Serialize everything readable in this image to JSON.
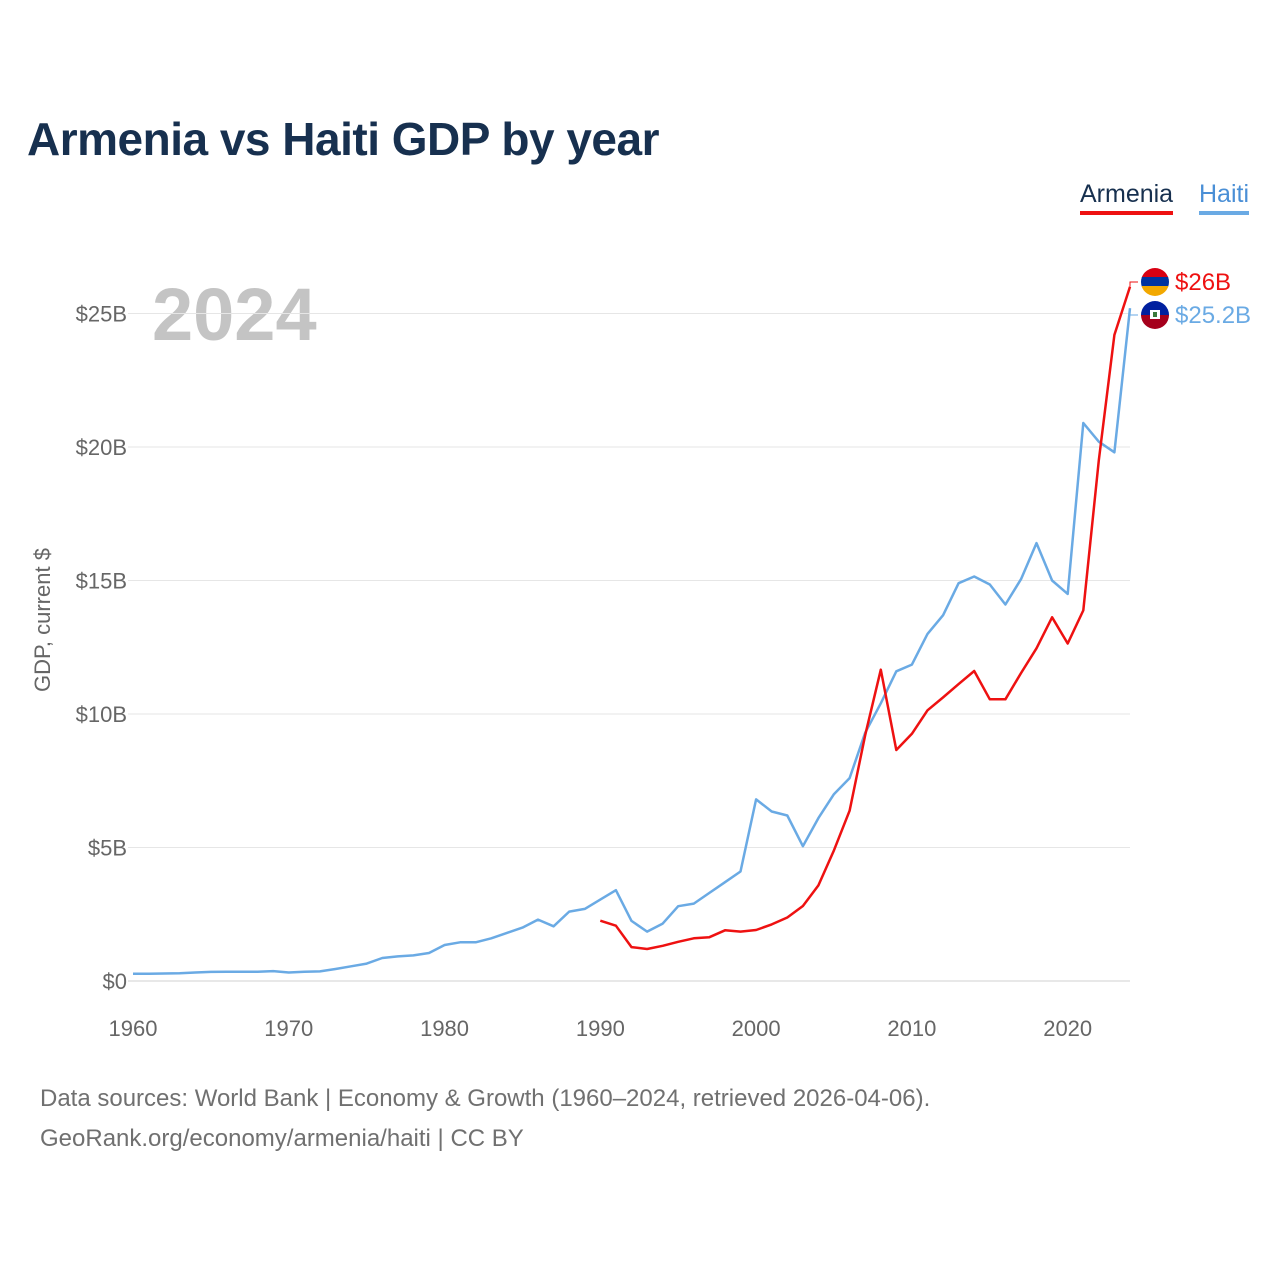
{
  "chart_data": {
    "type": "line",
    "title": "Armenia vs Haiti GDP by year",
    "watermark_year": "2024",
    "xlabel": "",
    "ylabel": "GDP, current $",
    "xlim": [
      1960,
      2024
    ],
    "ylim": [
      0,
      27
    ],
    "x_ticks": [
      1960,
      1970,
      1980,
      1990,
      2000,
      2010,
      2020
    ],
    "y_ticks": [
      0,
      5,
      10,
      15,
      20,
      25
    ],
    "y_tick_labels": [
      "$0",
      "$5B",
      "$10B",
      "$15B",
      "$20B",
      "$25B"
    ],
    "grid": true,
    "legend": "top-right",
    "series": [
      {
        "name": "Armenia",
        "color": "#ee1111",
        "flag": "armenia-flag",
        "end_label": "$26B",
        "x": [
          1990,
          1991,
          1992,
          1993,
          1994,
          1995,
          1996,
          1997,
          1998,
          1999,
          2000,
          2001,
          2002,
          2003,
          2004,
          2005,
          2006,
          2007,
          2008,
          2009,
          2010,
          2011,
          2012,
          2013,
          2014,
          2015,
          2016,
          2017,
          2018,
          2019,
          2020,
          2021,
          2022,
          2023,
          2024
        ],
        "values": [
          2.26,
          2.07,
          1.27,
          1.2,
          1.32,
          1.47,
          1.6,
          1.64,
          1.9,
          1.85,
          1.91,
          2.12,
          2.38,
          2.81,
          3.58,
          4.9,
          6.38,
          9.21,
          11.66,
          8.65,
          9.26,
          10.14,
          10.62,
          11.12,
          11.61,
          10.55,
          10.55,
          11.53,
          12.46,
          13.62,
          12.64,
          13.88,
          19.5,
          24.2,
          26.0
        ]
      },
      {
        "name": "Haiti",
        "color": "#6aaae4",
        "flag": "haiti-flag",
        "end_label": "$25.2B",
        "x": [
          1960,
          1961,
          1962,
          1963,
          1964,
          1965,
          1966,
          1967,
          1968,
          1969,
          1970,
          1971,
          1972,
          1973,
          1974,
          1975,
          1976,
          1977,
          1978,
          1979,
          1980,
          1981,
          1982,
          1983,
          1984,
          1985,
          1986,
          1987,
          1988,
          1989,
          1990,
          1991,
          1992,
          1993,
          1994,
          1995,
          1996,
          1997,
          1998,
          1999,
          2000,
          2001,
          2002,
          2003,
          2004,
          2005,
          2006,
          2007,
          2008,
          2009,
          2010,
          2011,
          2012,
          2013,
          2014,
          2015,
          2016,
          2017,
          2018,
          2019,
          2020,
          2021,
          2022,
          2023,
          2024
        ],
        "values": [
          0.27,
          0.27,
          0.28,
          0.29,
          0.32,
          0.34,
          0.35,
          0.35,
          0.35,
          0.37,
          0.32,
          0.35,
          0.36,
          0.45,
          0.55,
          0.65,
          0.86,
          0.92,
          0.96,
          1.05,
          1.35,
          1.45,
          1.45,
          1.6,
          1.8,
          2.0,
          2.3,
          2.05,
          2.6,
          2.7,
          3.05,
          3.4,
          2.25,
          1.85,
          2.15,
          2.8,
          2.9,
          3.3,
          3.7,
          4.1,
          6.8,
          6.35,
          6.2,
          5.05,
          6.1,
          7.0,
          7.6,
          9.3,
          10.4,
          11.6,
          11.85,
          13.0,
          13.7,
          14.9,
          15.15,
          14.85,
          14.1,
          15.05,
          16.4,
          15.0,
          14.5,
          20.9,
          20.2,
          19.8,
          25.2
        ]
      }
    ]
  },
  "footer": {
    "source": "Data sources: World Bank | Economy & Growth (1960–2024, retrieved 2026-04-06).",
    "credit": "GeoRank.org/economy/armenia/haiti | CC BY"
  }
}
